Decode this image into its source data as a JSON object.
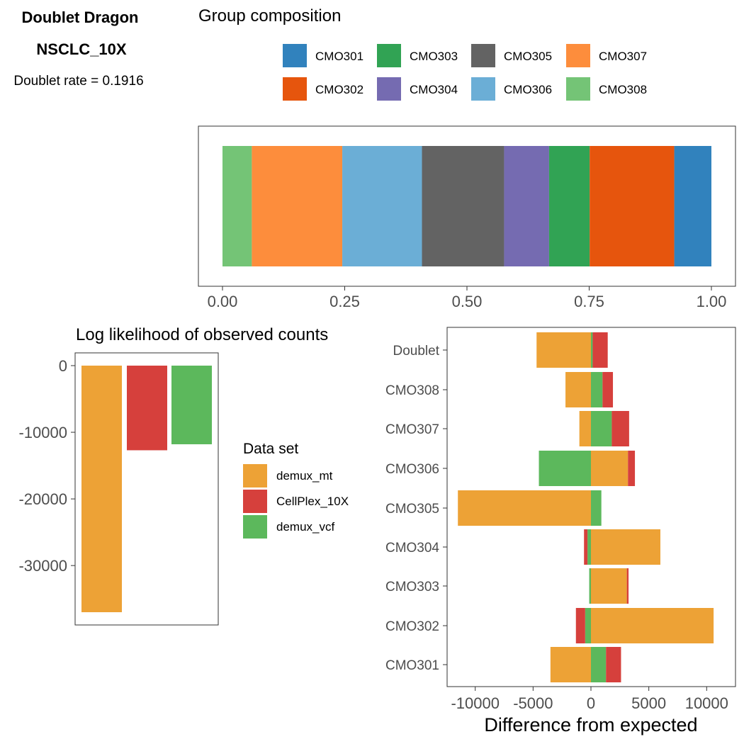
{
  "header": {
    "title": "Doublet Dragon",
    "subtitle": "NSCLC_10X",
    "doublet_rate": "Doublet rate = 0.1916"
  },
  "group_legend": {
    "title": "Group composition",
    "items": [
      {
        "label": "CMO301",
        "color": "#3182BD"
      },
      {
        "label": "CMO303",
        "color": "#31A354"
      },
      {
        "label": "CMO305",
        "color": "#636363"
      },
      {
        "label": "CMO307",
        "color": "#FD8D3C"
      },
      {
        "label": "CMO302",
        "color": "#E6550D"
      },
      {
        "label": "CMO304",
        "color": "#756BB1"
      },
      {
        "label": "CMO306",
        "color": "#6BAED6"
      },
      {
        "label": "CMO308",
        "color": "#74C476"
      }
    ]
  },
  "dataset_legend": {
    "title": "Data set",
    "items": [
      {
        "label": "demux_mt",
        "color": "#EDA236"
      },
      {
        "label": "CellPlex_10X",
        "color": "#D6403C"
      },
      {
        "label": "demux_vcf",
        "color": "#5CB85C"
      }
    ]
  },
  "chart_data": [
    {
      "type": "bar",
      "orientation": "horizontal-stacked",
      "xlim": [
        0,
        1
      ],
      "xticks": [
        "0.00",
        "0.25",
        "0.50",
        "0.75",
        "1.00"
      ],
      "segments": [
        {
          "label": "CMO308",
          "start": 0.0,
          "end": 0.06,
          "color": "#74C476"
        },
        {
          "label": "CMO307",
          "start": 0.06,
          "end": 0.245,
          "color": "#FD8D3C"
        },
        {
          "label": "CMO306",
          "start": 0.245,
          "end": 0.408,
          "color": "#6BAED6"
        },
        {
          "label": "CMO305",
          "start": 0.408,
          "end": 0.576,
          "color": "#636363"
        },
        {
          "label": "CMO304",
          "start": 0.576,
          "end": 0.668,
          "color": "#756BB1"
        },
        {
          "label": "CMO303",
          "start": 0.668,
          "end": 0.751,
          "color": "#31A354"
        },
        {
          "label": "CMO302",
          "start": 0.751,
          "end": 0.924,
          "color": "#E6550D"
        },
        {
          "label": "CMO301",
          "start": 0.924,
          "end": 1.0,
          "color": "#3182BD"
        }
      ]
    },
    {
      "type": "bar",
      "title": "Log likelihood of observed counts",
      "ylim": [
        -37500,
        0
      ],
      "yticks": [
        "0",
        "-10000",
        "-20000",
        "-30000"
      ],
      "categories": [
        "demux_mt",
        "CellPlex_10X",
        "demux_vcf"
      ],
      "values": [
        -37000,
        -12700,
        -11800
      ],
      "colors": [
        "#EDA236",
        "#D6403C",
        "#5CB85C"
      ]
    },
    {
      "type": "bar",
      "orientation": "horizontal-stacked",
      "xlabel": "Difference from expected",
      "xlim": [
        -11500,
        11500
      ],
      "xticks": [
        "-10000",
        "-5000",
        "0",
        "5000",
        "10000"
      ],
      "categories": [
        "Doublet",
        "CMO308",
        "CMO307",
        "CMO306",
        "CMO305",
        "CMO304",
        "CMO303",
        "CMO302",
        "CMO301"
      ],
      "series": [
        {
          "name": "demux_mt",
          "color": "#EDA236",
          "values": [
            -4700,
            -2200,
            -1000,
            3200,
            -11500,
            6000,
            3100,
            10600,
            -3500
          ]
        },
        {
          "name": "demux_vcf",
          "color": "#5CB85C",
          "values": [
            150,
            1000,
            1800,
            -4500,
            900,
            -300,
            -150,
            -500,
            1300
          ]
        },
        {
          "name": "CellPlex_10X",
          "color": "#D6403C",
          "values": [
            1300,
            900,
            1500,
            600,
            0,
            -300,
            150,
            -800,
            1300
          ]
        }
      ]
    }
  ]
}
